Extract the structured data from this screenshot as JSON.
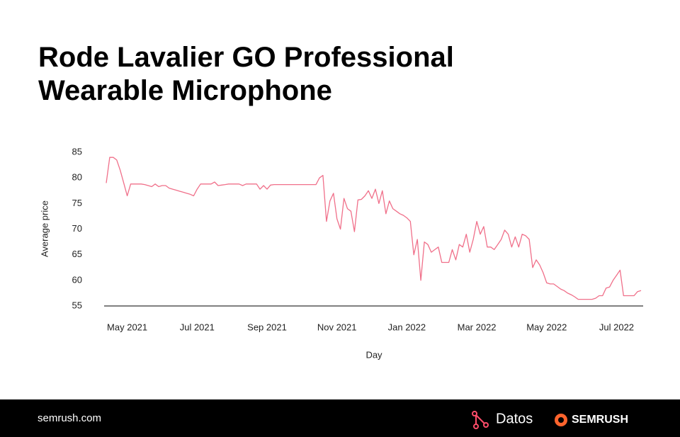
{
  "chart_data": {
    "type": "line",
    "title": "Rode Lavalier GO Professional Wearable Microphone",
    "x_label": "Day",
    "y_label": "Average price",
    "color": "#f0708a",
    "categories": [
      null,
      null,
      null,
      null,
      null,
      null,
      "May 2021",
      null,
      null,
      null,
      null,
      null,
      null,
      null,
      null,
      null,
      null,
      null,
      null,
      null,
      null,
      null,
      null,
      null,
      null,
      null,
      "Jul 2021",
      null,
      null,
      null,
      null,
      null,
      null,
      null,
      null,
      null,
      null,
      null,
      null,
      null,
      null,
      null,
      null,
      null,
      null,
      null,
      "Sep 2021",
      null,
      null,
      null,
      null,
      null,
      null,
      null,
      null,
      null,
      null,
      null,
      null,
      null,
      null,
      null,
      null,
      null,
      null,
      null,
      "Nov 2021",
      null,
      null,
      null,
      null,
      null,
      null,
      null,
      null,
      null,
      null,
      null,
      null,
      null,
      null,
      null,
      null,
      null,
      null,
      null,
      "Jan 2022",
      null,
      null,
      null,
      null,
      null,
      null,
      null,
      null,
      null,
      null,
      null,
      null,
      null,
      null,
      null,
      null,
      null,
      null,
      null,
      "Mar 2022",
      null,
      null,
      null,
      null,
      null,
      null,
      null,
      null,
      null,
      null,
      null,
      null,
      null,
      null,
      null,
      null,
      null,
      null,
      null,
      "May 2022",
      null,
      null,
      null,
      null,
      null,
      null,
      null,
      null,
      null,
      null,
      null,
      null,
      null,
      null,
      null,
      null,
      null,
      null,
      null,
      "Jul 2022",
      null,
      null,
      null,
      null,
      null,
      null,
      null
    ],
    "values": [
      79,
      84,
      84,
      83.5,
      81.5,
      79,
      76.5,
      78.8,
      78.8,
      78.8,
      78.8,
      78.7,
      78.5,
      78.3,
      78.8,
      78.3,
      78.5,
      78.5,
      78,
      77.8,
      77.6,
      77.4,
      77.2,
      77,
      76.8,
      76.5,
      77.8,
      78.8,
      78.8,
      78.8,
      78.8,
      79.2,
      78.5,
      78.6,
      78.7,
      78.8,
      78.8,
      78.8,
      78.8,
      78.5,
      78.8,
      78.8,
      78.8,
      78.8,
      77.8,
      78.5,
      77.8,
      78.6,
      78.7,
      78.7,
      78.7,
      78.7,
      78.7,
      78.7,
      78.7,
      78.7,
      78.7,
      78.7,
      78.7,
      78.7,
      78.7,
      80,
      80.5,
      71.5,
      75.5,
      77,
      72,
      70,
      76,
      74,
      73.5,
      69.5,
      75.7,
      75.8,
      76.5,
      77.5,
      76,
      77.8,
      75,
      77.5,
      73,
      75.5,
      74,
      73.5,
      73,
      72.7,
      72.2,
      71.5,
      65,
      68,
      60,
      67.5,
      67,
      65.5,
      66,
      66.5,
      63.5,
      63.5,
      63.5,
      66,
      64,
      67,
      66.5,
      69,
      65.5,
      68,
      71.5,
      69,
      70.5,
      66.5,
      66.5,
      66,
      67,
      68,
      69.8,
      69,
      66.5,
      68.5,
      66.5,
      69,
      68.7,
      68,
      62.5,
      64,
      63,
      61.5,
      59.5,
      59.3,
      59.3,
      58.8,
      58.3,
      58,
      57.5,
      57.2,
      56.8,
      56.3,
      56.3,
      56.3,
      56.3,
      56.3,
      56.5,
      57,
      57,
      58.5,
      58.7,
      60,
      61,
      62,
      57,
      57,
      57,
      57,
      57.8,
      58
    ],
    "ylim": [
      55,
      85
    ],
    "yticks": [
      55,
      60,
      65,
      70,
      75,
      80,
      85
    ],
    "grid": false
  },
  "footer": {
    "site": "semrush.com",
    "brand1": "Datos",
    "brand2": "SEMRUSH"
  }
}
